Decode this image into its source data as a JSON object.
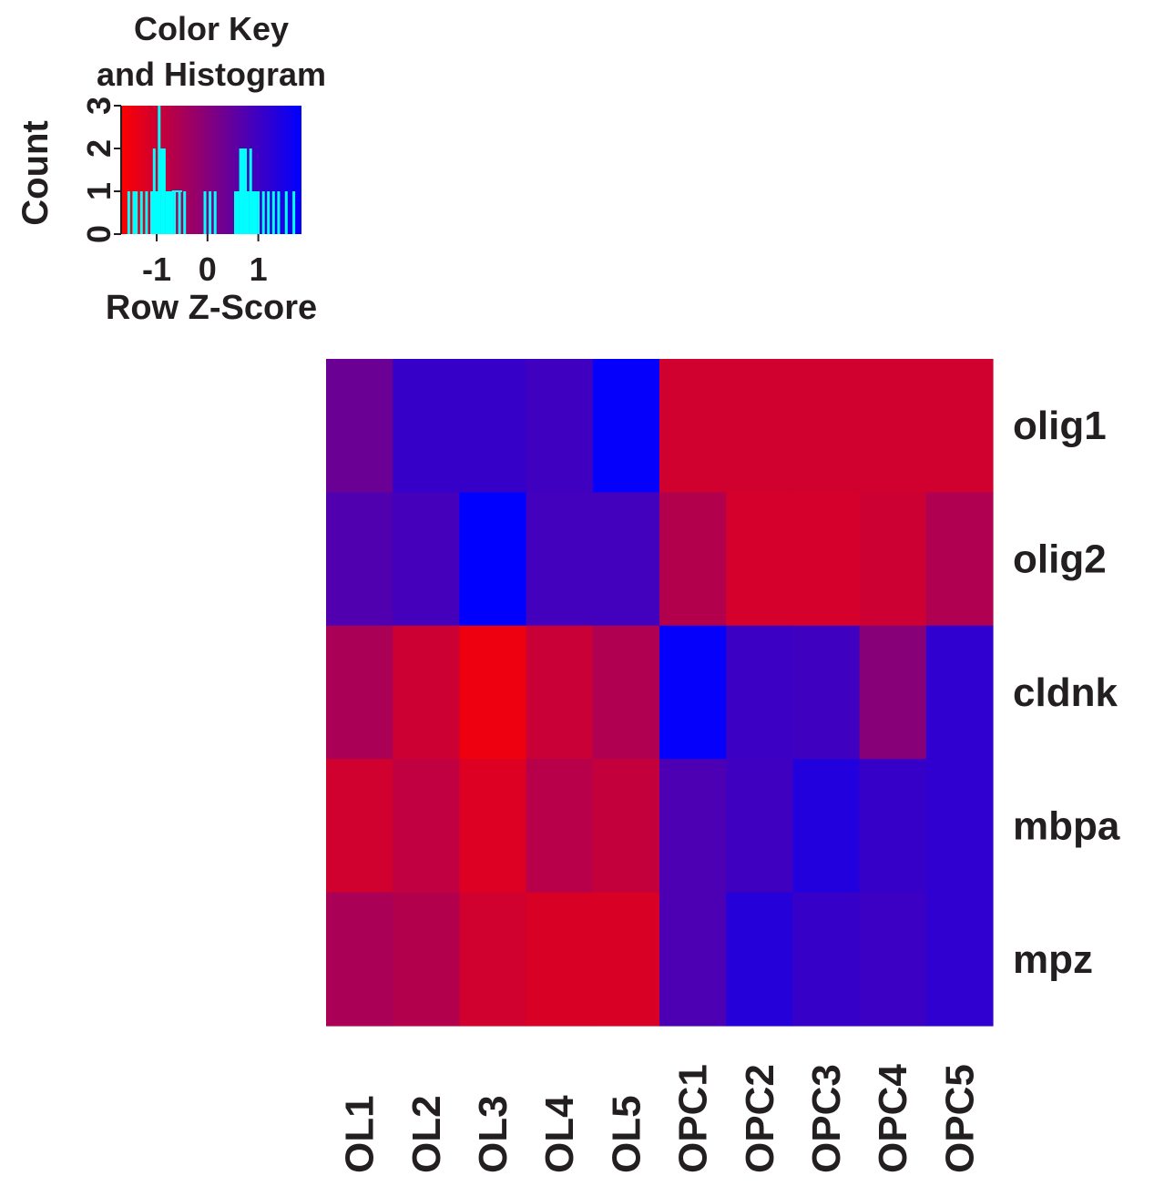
{
  "chart_data": [
    {
      "type": "heatmap",
      "columns": [
        "OL1",
        "OL2",
        "OL3",
        "OL4",
        "OL5",
        "OPC1",
        "OPC2",
        "OPC3",
        "OPC4",
        "OPC5"
      ],
      "rows": [
        "olig1",
        "olig2",
        "cldnk",
        "mbpa",
        "mpz"
      ],
      "values": [
        [
          0.25,
          0.85,
          0.85,
          0.75,
          1.45,
          -0.95,
          -0.95,
          -0.95,
          -0.95,
          -0.95
        ],
        [
          0.55,
          0.7,
          1.5,
          0.72,
          0.72,
          -0.6,
          -1.0,
          -1.0,
          -0.9,
          -0.55
        ],
        [
          -0.5,
          -0.9,
          -1.3,
          -0.85,
          -0.55,
          1.45,
          0.8,
          0.75,
          -0.1,
          0.95
        ],
        [
          -0.95,
          -0.75,
          -1.1,
          -0.65,
          -0.8,
          0.6,
          0.75,
          1.1,
          0.85,
          0.95
        ],
        [
          -0.5,
          -0.6,
          -0.95,
          -1.05,
          -1.05,
          0.6,
          1.05,
          0.85,
          0.8,
          0.95
        ]
      ],
      "color_scale": {
        "low": "#ff0000",
        "mid": "#800080",
        "high": "#0000ff",
        "range": [
          -1.5,
          1.5
        ]
      }
    },
    {
      "type": "bar",
      "title": "Color Key\nand Histogram",
      "title_lines": [
        "Color Key",
        "and Histogram"
      ],
      "xlabel": "Row Z-Score",
      "ylabel": "Count",
      "xticks": [
        "-1",
        "0",
        "1"
      ],
      "yticks": [
        "0",
        "1",
        "2",
        "3"
      ],
      "xlim": [
        -1.7,
        1.85
      ],
      "ylim": [
        0,
        3
      ],
      "bar_color": "#00ffff",
      "x": [
        -1.55,
        -1.45,
        -1.4,
        -1.3,
        -1.2,
        -1.1,
        -1.05,
        -1.0,
        -0.95,
        -0.9,
        -0.85,
        -0.8,
        -0.75,
        -0.7,
        -0.65,
        -0.55,
        -0.45,
        -0.05,
        0.05,
        0.15,
        0.55,
        0.6,
        0.65,
        0.7,
        0.75,
        0.8,
        0.85,
        0.9,
        0.95,
        1.0,
        1.1,
        1.2,
        1.3,
        1.4,
        1.55,
        1.7
      ],
      "values": [
        1,
        1,
        1,
        1,
        1,
        1,
        2,
        1,
        3,
        2,
        2,
        1,
        1,
        1,
        1,
        1,
        1,
        1,
        1,
        1,
        1,
        1,
        2,
        2,
        2,
        1,
        2,
        1,
        1,
        1,
        1,
        1,
        1,
        1,
        1,
        1
      ]
    }
  ]
}
